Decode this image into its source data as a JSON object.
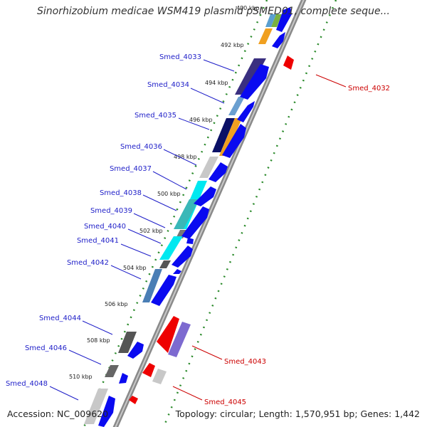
{
  "header": {
    "title": "Sinorhizobium medicae WSM419 plasmid pSMED01, complete seque..."
  },
  "footer": {
    "accession": "Accession: NC_009620",
    "topology": "Topology: circular; Length: 1,570,951 bp; Genes: 1,442"
  },
  "colors": {
    "forward_label": "#1e1ec8",
    "reverse_label": "#cc0000",
    "forward_cds": "#0a0af0",
    "reverse_cds": "#ee0000",
    "backbone": "#888888",
    "tick": "#2a8a2a"
  },
  "ruler": {
    "ticks": [
      {
        "label": "490 kbp",
        "pos": 0.0
      },
      {
        "label": "492 kbp",
        "pos": 0.083
      },
      {
        "label": "494 kbp",
        "pos": 0.176
      },
      {
        "label": "496 kbp",
        "pos": 0.268
      },
      {
        "label": "498 kbp",
        "pos": 0.361
      },
      {
        "label": "500 kbp",
        "pos": 0.454
      },
      {
        "label": "502 kbp",
        "pos": 0.547
      },
      {
        "label": "504 kbp",
        "pos": 0.64
      },
      {
        "label": "506 kbp",
        "pos": 0.732
      },
      {
        "label": "508 kbp",
        "pos": 0.825
      },
      {
        "label": "510 kbp",
        "pos": 0.918
      }
    ]
  },
  "forward_genes": [
    {
      "label": "Smed_4033",
      "start": 0.14,
      "end": 0.22
    },
    {
      "label": "Smed_4034",
      "start": 0.235,
      "end": 0.275
    },
    {
      "label": "Smed_4035",
      "start": 0.29,
      "end": 0.335
    },
    {
      "label": "Smed_4036",
      "start": 0.345,
      "end": 0.36
    },
    {
      "label": "Smed_4037",
      "start": 0.37,
      "end": 0.41
    },
    {
      "label": "Smed_4038",
      "start": 0.42,
      "end": 0.47
    },
    {
      "label": "Smed_4039",
      "start": 0.48,
      "end": 0.535
    },
    {
      "label": "Smed_4040",
      "start": 0.545,
      "end": 0.565
    },
    {
      "label": "Smed_4041",
      "start": 0.575,
      "end": 0.625
    },
    {
      "label": "Smed_4042",
      "start": 0.64,
      "end": 0.655
    },
    {
      "label": "Smed_4044",
      "start": 0.83,
      "end": 0.865
    },
    {
      "label": "Smed_4046",
      "start": 0.9,
      "end": 0.92
    },
    {
      "label": "Smed_4048",
      "start": 0.96,
      "end": 1.0
    }
  ],
  "reverse_genes": [
    {
      "label": "Smed_4032",
      "start": 0.08,
      "end": 0.1
    },
    {
      "label": "Smed_4043",
      "start": 0.77,
      "end": 0.84
    },
    {
      "label": "Smed_4045",
      "start": 0.885,
      "end": 0.91
    }
  ]
}
